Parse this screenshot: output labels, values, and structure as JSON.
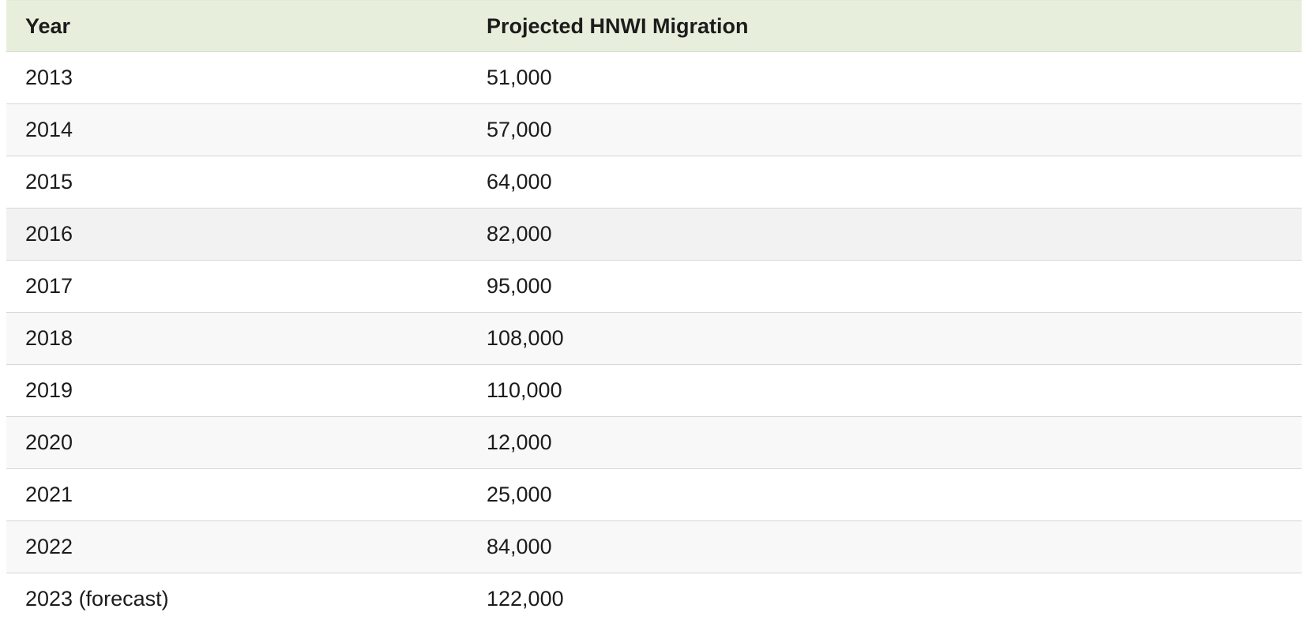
{
  "table": {
    "headers": [
      "Year",
      "Projected HNWI Migration"
    ],
    "rows": [
      [
        "2013",
        "51,000"
      ],
      [
        "2014",
        "57,000"
      ],
      [
        "2015",
        "64,000"
      ],
      [
        "2016",
        "82,000"
      ],
      [
        "2017",
        "95,000"
      ],
      [
        "2018",
        "108,000"
      ],
      [
        "2019",
        "110,000"
      ],
      [
        "2020",
        "12,000"
      ],
      [
        "2021",
        "25,000"
      ],
      [
        "2022",
        "84,000"
      ],
      [
        "2023 (forecast)",
        "122,000"
      ]
    ],
    "hovered_row_index": 3
  },
  "colors": {
    "header_background": "#e7efdc",
    "row_alt_background": "#f8f8f8",
    "row_hover_background": "#f2f2f2",
    "border": "#d7d7d7",
    "text": "#1c1c1c"
  }
}
